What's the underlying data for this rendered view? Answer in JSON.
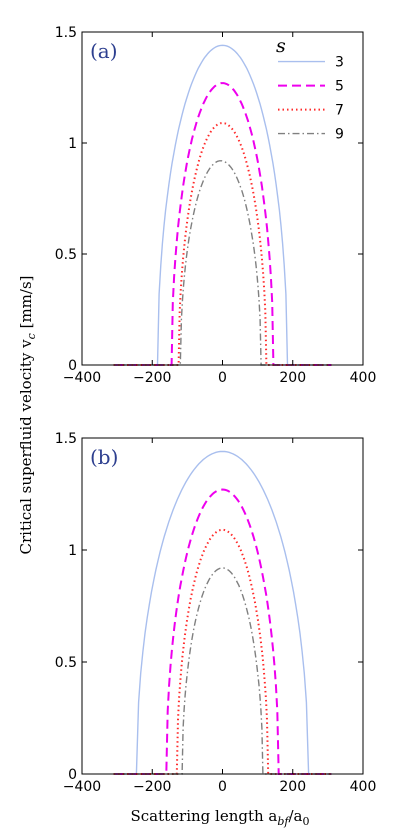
{
  "chart_data": [
    {
      "type": "line",
      "panel_label": "(a)",
      "xlim": [
        -400,
        400
      ],
      "ylim": [
        0,
        1.5
      ],
      "xticks": [
        -400,
        -200,
        0,
        200,
        400
      ],
      "yticks": [
        0,
        0.5,
        1,
        1.5
      ],
      "xtick_labels": [
        "−400",
        "−200",
        "0",
        "200",
        "400"
      ],
      "ytick_labels": [
        "0",
        "0.5",
        "1",
        "1.5"
      ],
      "legend_title": "s",
      "legend_position": "top-right",
      "series": [
        {
          "name": "3",
          "peak": 1.44,
          "a_min": -185,
          "a_max": 185,
          "color": "#a9bfee",
          "dash": "none"
        },
        {
          "name": "5",
          "peak": 1.27,
          "a_min": -145,
          "a_max": 145,
          "color": "#ee00ee",
          "dash": "dashed"
        },
        {
          "name": "7",
          "peak": 1.09,
          "a_min": -125,
          "a_max": 125,
          "color": "#ff2a2a",
          "dash": "dotted"
        },
        {
          "name": "9",
          "peak": 0.92,
          "a_min": -120,
          "a_max": 110,
          "color": "#808080",
          "dash": "dashdot"
        }
      ]
    },
    {
      "type": "line",
      "panel_label": "(b)",
      "xlim": [
        -400,
        400
      ],
      "ylim": [
        0,
        1.5
      ],
      "xticks": [
        -400,
        -200,
        0,
        200,
        400
      ],
      "yticks": [
        0,
        0.5,
        1,
        1.5
      ],
      "xtick_labels": [
        "−400",
        "−200",
        "0",
        "200",
        "400"
      ],
      "ytick_labels": [
        "0",
        "0.5",
        "1",
        "1.5"
      ],
      "series": [
        {
          "name": "3",
          "peak": 1.44,
          "a_min": -245,
          "a_max": 245,
          "color": "#a9bfee",
          "dash": "none"
        },
        {
          "name": "5",
          "peak": 1.27,
          "a_min": -160,
          "a_max": 160,
          "color": "#ee00ee",
          "dash": "dashed"
        },
        {
          "name": "7",
          "peak": 1.09,
          "a_min": -130,
          "a_max": 130,
          "color": "#ff2a2a",
          "dash": "dotted"
        },
        {
          "name": "9",
          "peak": 0.92,
          "a_min": -115,
          "a_max": 115,
          "color": "#808080",
          "dash": "dashdot"
        }
      ]
    }
  ],
  "ylabel": "Critical superfluid velocity v",
  "ylabel_sub": "c",
  "ylabel_unit": " [mm/s]",
  "xlabel": "Scattering length a",
  "xlabel_sub": "bf",
  "xlabel_tail": "/a",
  "xlabel_sub2": "0",
  "panel_label_color": "#2d3f8f"
}
